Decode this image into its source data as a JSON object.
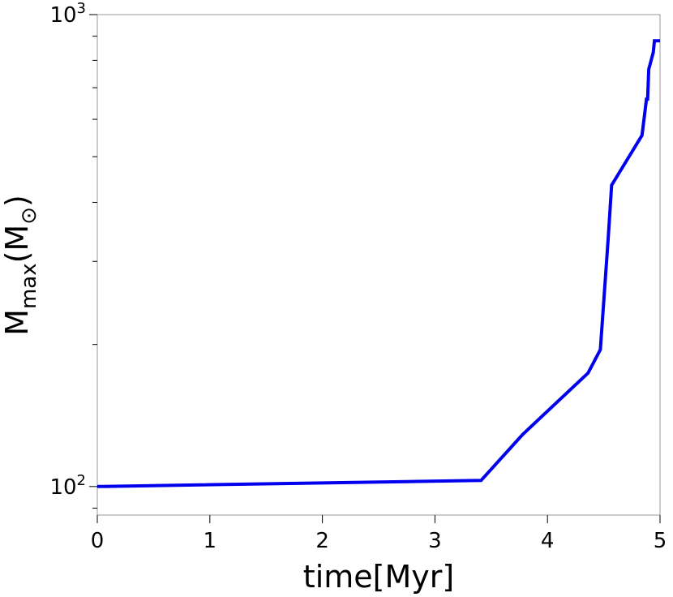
{
  "chart_data": {
    "type": "line",
    "title": "",
    "xlabel": "time[Myr]",
    "ylabel": {
      "main": "M",
      "sub": "max",
      "open": "(M",
      "symbol": "⊙",
      "close": ")"
    },
    "xlim": [
      0,
      5
    ],
    "ylim": [
      87,
      1000
    ],
    "yscale": "log",
    "x_ticks": [
      0,
      1,
      2,
      3,
      4,
      5
    ],
    "y_ticks_major": [
      {
        "value": 100,
        "base": "10",
        "exp": "2"
      },
      {
        "value": 1000,
        "base": "10",
        "exp": "3"
      }
    ],
    "grid": false,
    "series": [
      {
        "color": "#0000ee",
        "x": [
          0,
          3.41,
          3.41,
          3.78,
          3.78,
          4.36,
          4.36,
          4.47,
          4.47,
          4.54,
          4.54,
          4.57,
          4.57,
          4.84,
          4.84,
          4.88,
          4.88,
          4.89,
          4.89,
          4.9,
          4.9,
          4.94,
          4.94,
          4.95,
          4.95,
          5.0
        ],
        "y": [
          100,
          103,
          103,
          129,
          129,
          174,
          174,
          195,
          195,
          338,
          338,
          435,
          435,
          555,
          555,
          662,
          662,
          662,
          662,
          766,
          766,
          832,
          832,
          880,
          880,
          880
        ]
      }
    ]
  }
}
